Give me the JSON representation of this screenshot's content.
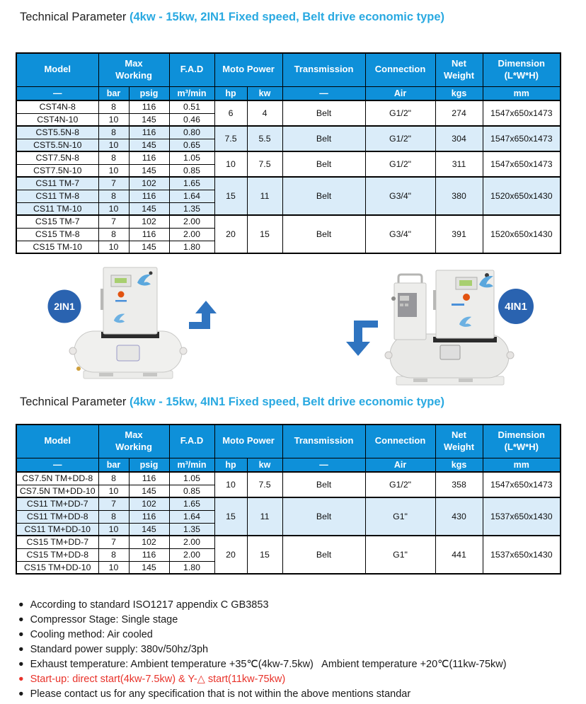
{
  "colors": {
    "header_blue": "#0e90d9",
    "row_light_blue": "#daecf9",
    "title_blue": "#29a9e1",
    "badge_blue": "#2a63b0",
    "arrow_blue": "#2f74c0",
    "note_red": "#e8322a"
  },
  "section_top": {
    "title_prefix": "Technical Parameter ",
    "title_highlight": "(4kw - 15kw, 2IN1 Fixed speed, Belt drive economic type)"
  },
  "section_bottom": {
    "title_prefix": "Technical Parameter ",
    "title_highlight": "(4kw - 15kw, 4IN1 Fixed speed, Belt drive economic type)"
  },
  "table1": {
    "header_row1": [
      {
        "lines": [
          "Model"
        ]
      },
      {
        "lines": [
          "Max",
          "Working"
        ],
        "colspan": 2
      },
      {
        "lines": [
          "F.A.D"
        ]
      },
      {
        "lines": [
          "Moto Power"
        ],
        "colspan": 2
      },
      {
        "lines": [
          "Transmission"
        ]
      },
      {
        "lines": [
          "Connection"
        ]
      },
      {
        "lines": [
          "Net",
          "Weight"
        ]
      },
      {
        "lines": [
          "Dimension",
          "(L*W*H)"
        ]
      }
    ],
    "header_row2": [
      "—",
      "bar",
      "psig",
      "m³/min",
      "hp",
      "kw",
      "—",
      "Air",
      "kgs",
      "mm"
    ],
    "groups": [
      {
        "shaded": false,
        "rows": [
          [
            "CST4N-8",
            "8",
            "116",
            "0.51"
          ],
          [
            "CST4N-10",
            "10",
            "145",
            "0.46"
          ]
        ],
        "merged": [
          "6",
          "4",
          "Belt",
          "G1/2\"",
          "274",
          "1547x650x1473"
        ]
      },
      {
        "shaded": true,
        "rows": [
          [
            "CST5.5N-8",
            "8",
            "116",
            "0.80"
          ],
          [
            "CST5.5N-10",
            "10",
            "145",
            "0.65"
          ]
        ],
        "merged": [
          "7.5",
          "5.5",
          "Belt",
          "G1/2\"",
          "304",
          "1547x650x1473"
        ]
      },
      {
        "shaded": false,
        "rows": [
          [
            "CST7.5N-8",
            "8",
            "116",
            "1.05"
          ],
          [
            "CST7.5N-10",
            "10",
            "145",
            "0.85"
          ]
        ],
        "merged": [
          "10",
          "7.5",
          "Belt",
          "G1/2\"",
          "311",
          "1547x650x1473"
        ]
      },
      {
        "shaded": true,
        "rows": [
          [
            "CS11 TM-7",
            "7",
            "102",
            "1.65"
          ],
          [
            "CS11 TM-8",
            "8",
            "116",
            "1.64"
          ],
          [
            "CS11 TM-10",
            "10",
            "145",
            "1.35"
          ]
        ],
        "merged": [
          "15",
          "11",
          "Belt",
          "G3/4\"",
          "380",
          "1520x650x1430"
        ]
      },
      {
        "shaded": false,
        "rows": [
          [
            "CS15 TM-7",
            "7",
            "102",
            "2.00"
          ],
          [
            "CS15 TM-8",
            "8",
            "116",
            "2.00"
          ],
          [
            "CS15 TM-10",
            "10",
            "145",
            "1.80"
          ]
        ],
        "merged": [
          "20",
          "15",
          "Belt",
          "G3/4\"",
          "391",
          "1520x650x1430"
        ]
      }
    ]
  },
  "table2": {
    "header_row1": [
      {
        "lines": [
          "Model"
        ]
      },
      {
        "lines": [
          "Max",
          "Working"
        ],
        "colspan": 2
      },
      {
        "lines": [
          "F.A.D"
        ]
      },
      {
        "lines": [
          "Moto Power"
        ],
        "colspan": 2
      },
      {
        "lines": [
          "Transmission"
        ]
      },
      {
        "lines": [
          "Connection"
        ]
      },
      {
        "lines": [
          "Net",
          "Weight"
        ]
      },
      {
        "lines": [
          "Dimension",
          "(L*W*H)"
        ]
      }
    ],
    "header_row2": [
      "—",
      "bar",
      "psig",
      "m³/min",
      "hp",
      "kw",
      "—",
      "Air",
      "kgs",
      "mm"
    ],
    "groups": [
      {
        "shaded": false,
        "rows": [
          [
            "CS7.5N TM+DD-8",
            "8",
            "116",
            "1.05"
          ],
          [
            "CS7.5N TM+DD-10",
            "10",
            "145",
            "0.85"
          ]
        ],
        "merged": [
          "10",
          "7.5",
          "Belt",
          "G1/2\"",
          "358",
          "1547x650x1473"
        ]
      },
      {
        "shaded": true,
        "rows": [
          [
            "CS11 TM+DD-7",
            "7",
            "102",
            "1.65"
          ],
          [
            "CS11 TM+DD-8",
            "8",
            "116",
            "1.64"
          ],
          [
            "CS11 TM+DD-10",
            "10",
            "145",
            "1.35"
          ]
        ],
        "merged": [
          "15",
          "11",
          "Belt",
          "G1\"",
          "430",
          "1537x650x1430"
        ]
      },
      {
        "shaded": false,
        "rows": [
          [
            "CS15 TM+DD-7",
            "7",
            "102",
            "2.00"
          ],
          [
            "CS15 TM+DD-8",
            "8",
            "116",
            "2.00"
          ],
          [
            "CS15 TM+DD-10",
            "10",
            "145",
            "1.80"
          ]
        ],
        "merged": [
          "20",
          "15",
          "Belt",
          "G1\"",
          "441",
          "1537x650x1430"
        ]
      }
    ]
  },
  "illustration": {
    "badge_left": "2IN1",
    "badge_right": "4IN1"
  },
  "notes": {
    "bullet_glyph": "●",
    "items": [
      {
        "text": "According to standard ISO1217 appendix C GB3853",
        "color": "black"
      },
      {
        "text": "Compressor Stage: Single stage",
        "color": "black"
      },
      {
        "text": "Cooling method: Air cooled",
        "color": "black"
      },
      {
        "text": "Standard power supply: 380v/50hz/3ph",
        "color": "black"
      },
      {
        "text": "Exhaust temperature: Ambient temperature +35℃(4kw-7.5kw)   Ambient temperature +20℃(11kw-75kw)",
        "color": "black"
      },
      {
        "text": "Start-up: direct start(4kw-7.5kw) & Y-△ start(11kw-75kw)",
        "color": "red"
      },
      {
        "text": "Please contact us for any specification that is not within the above mentions standar",
        "color": "black"
      }
    ]
  }
}
